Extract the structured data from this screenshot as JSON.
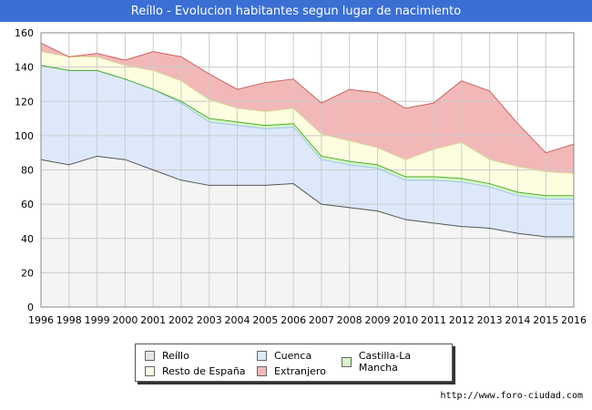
{
  "chart_data": {
    "type": "area",
    "title": "Reíllo - Evolucion habitantes segun lugar de nacimiento",
    "x": [
      1996,
      1998,
      1999,
      2000,
      2001,
      2002,
      2003,
      2004,
      2005,
      2006,
      2007,
      2008,
      2009,
      2010,
      2011,
      2012,
      2013,
      2014,
      2015,
      2016
    ],
    "stacked": true,
    "series": [
      {
        "name": "Reíllo",
        "color": "#f4f4f4",
        "line": "#555555",
        "values": [
          86,
          83,
          88,
          86,
          80,
          74,
          71,
          71,
          71,
          72,
          60,
          58,
          56,
          51,
          49,
          47,
          46,
          43,
          41,
          41
        ]
      },
      {
        "name": "Cuenca",
        "color": "#dde9fb",
        "line": "#9ec4f2",
        "values": [
          55,
          55,
          50,
          47,
          47,
          45,
          37,
          35,
          33,
          33,
          26,
          25,
          25,
          23,
          25,
          26,
          24,
          22,
          22,
          22
        ]
      },
      {
        "name": "Castilla-La Mancha",
        "color": "#d6f5c6",
        "line": "#4caf2e",
        "values": [
          0,
          0,
          0,
          0,
          0,
          1,
          2,
          2,
          2,
          2,
          2,
          2,
          2,
          2,
          2,
          2,
          2,
          2,
          2,
          2
        ]
      },
      {
        "name": "Resto de España",
        "color": "#fdfde0",
        "line": "#d8d89a",
        "values": [
          8,
          8,
          8,
          8,
          11,
          12,
          11,
          8,
          8,
          9,
          13,
          12,
          10,
          10,
          16,
          21,
          14,
          15,
          14,
          13
        ]
      },
      {
        "name": "Extranjero",
        "color": "#f2b8b8",
        "line": "#d06060",
        "values": [
          5,
          0,
          2,
          3,
          11,
          14,
          15,
          11,
          17,
          17,
          18,
          30,
          32,
          30,
          27,
          36,
          40,
          25,
          11,
          17
        ]
      }
    ],
    "ylim": [
      0,
      160
    ],
    "yticks": [
      0,
      20,
      40,
      60,
      80,
      100,
      120,
      140,
      160
    ],
    "grid": true,
    "legend_position": "bottom"
  },
  "legend": {
    "items": [
      {
        "label": "Reíllo",
        "color": "#e6e6e6"
      },
      {
        "label": "Cuenca",
        "color": "#dde9fb"
      },
      {
        "label": "Castilla-La Mancha",
        "color": "#d6f5c6"
      },
      {
        "label": "Resto de España",
        "color": "#fdfde0"
      },
      {
        "label": "Extranjero",
        "color": "#f2b8b8"
      }
    ]
  },
  "source": "http://www.foro-ciudad.com"
}
